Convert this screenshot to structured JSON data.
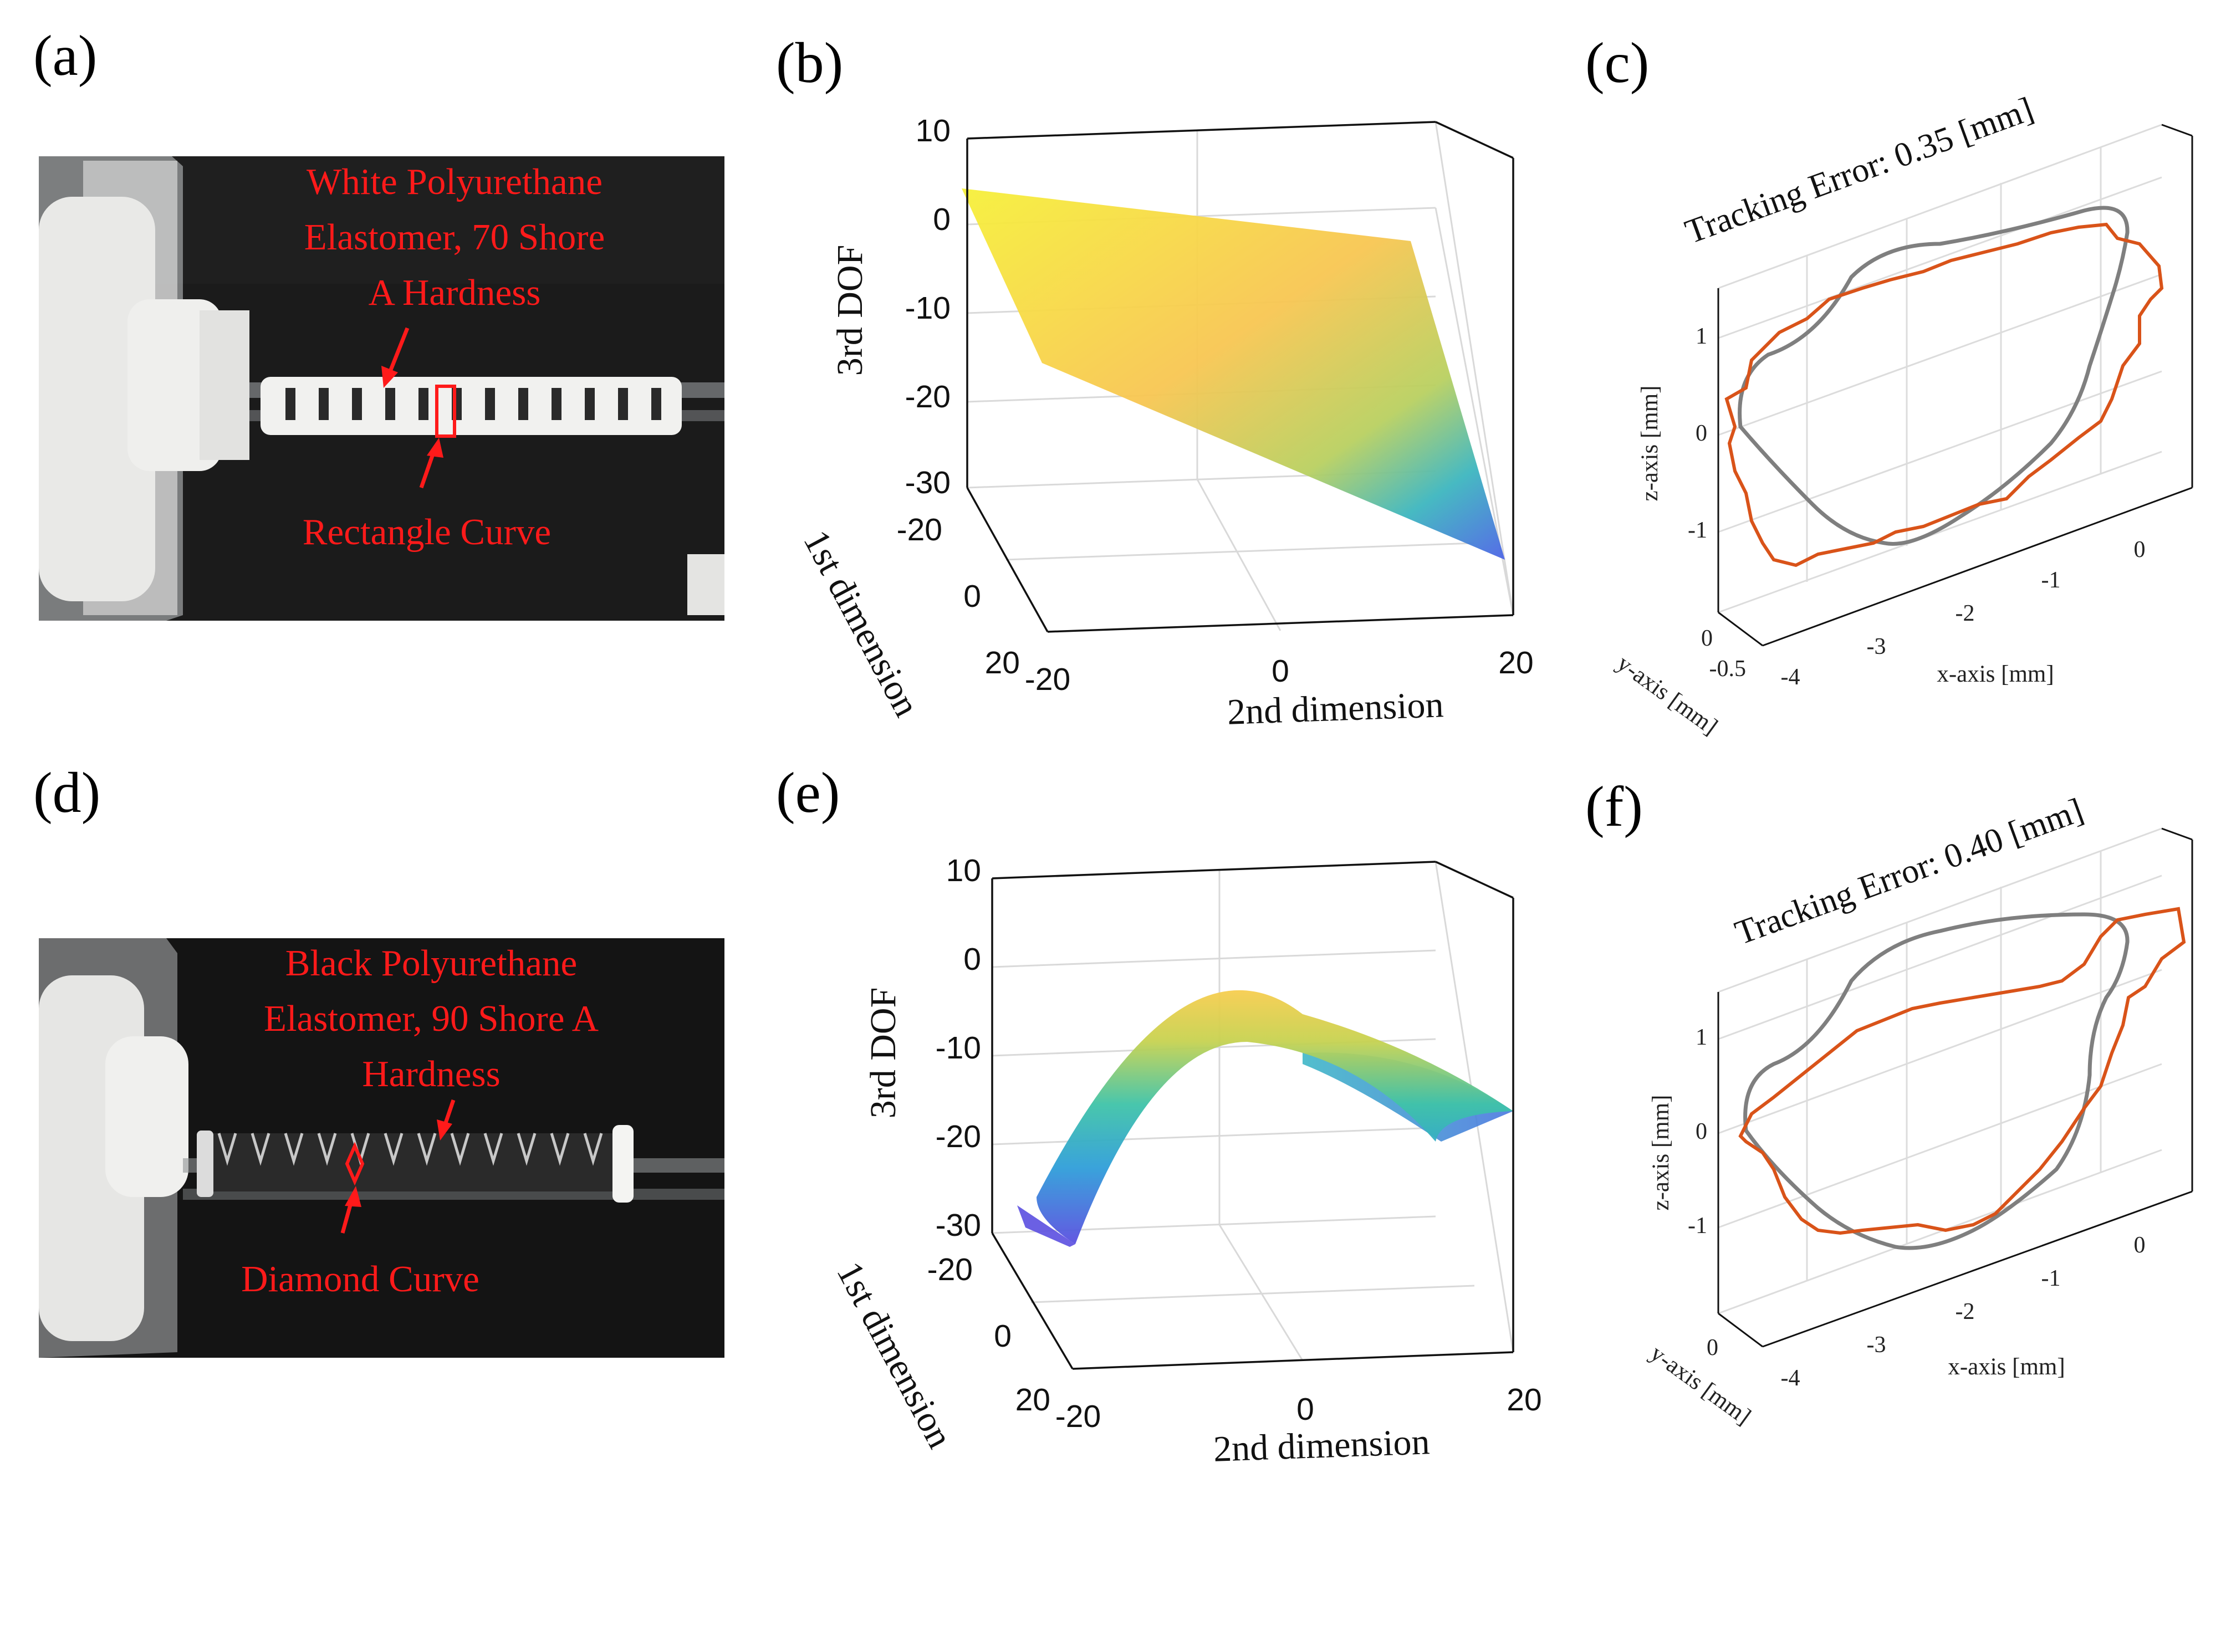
{
  "panel_labels": [
    "(a)",
    "(b)",
    "(c)",
    "(d)",
    "(e)",
    "(f)"
  ],
  "photo_a": {
    "annotation_material": [
      "White Polyurethane",
      "Elastomer, 70 Shore",
      "A Hardness"
    ],
    "annotation_curve": "Rectangle Curve",
    "colors": {
      "background": "#1b1b1b",
      "segment": "#f1f1ef",
      "annotation": "#ff1a1a"
    }
  },
  "photo_d": {
    "annotation_material": [
      "Black Polyurethane",
      "Elastomer, 90 Shore A",
      "Hardness"
    ],
    "annotation_curve": "Diamond Curve",
    "colors": {
      "background": "#141414",
      "segment": "#2a2a2a",
      "annotation": "#ff1a1a"
    }
  },
  "chart_data": [
    {
      "id": "b",
      "type": "surface",
      "xlabel": "2nd dimension",
      "ylabel": "1st dimension",
      "zlabel": "3rd DOF",
      "xticks": [
        "-20",
        "0",
        "20"
      ],
      "yticks": [
        "-20",
        "0",
        "20"
      ],
      "zticks": [
        "10",
        "0",
        "-10",
        "-20",
        "-30"
      ],
      "xlim": [
        -20,
        20
      ],
      "ylim": [
        -20,
        20
      ],
      "zlim": [
        -30,
        10
      ],
      "grid": true,
      "colormap": "parula",
      "surface_corners_z": {
        "x-20_y-20": 4,
        "x20_y-20": -2,
        "x-20_y20": -13,
        "x20_y20": -42
      }
    },
    {
      "id": "c",
      "type": "line",
      "title": "Tracking Error: 0.35 [mm]",
      "xlabel": "x-axis [mm]",
      "ylabel": "y-axis [mm]",
      "zlabel": "z-axis [mm]",
      "xticks": [
        "-4",
        "-3",
        "-2",
        "-1",
        "0"
      ],
      "yticks": [
        "0",
        "-0.5"
      ],
      "zticks": [
        "1",
        "0",
        "-1"
      ],
      "grid": true,
      "series_colors": {
        "reference": "#7f7f7f",
        "measured": "#d95319"
      }
    },
    {
      "id": "e",
      "type": "surface",
      "xlabel": "2nd dimension",
      "ylabel": "1st dimension",
      "zlabel": "3rd DOF",
      "xticks": [
        "-20",
        "0",
        "20"
      ],
      "yticks": [
        "-20",
        "0",
        "20"
      ],
      "zticks": [
        "10",
        "0",
        "-10",
        "-20",
        "-30"
      ],
      "xlim": [
        -20,
        20
      ],
      "ylim": [
        -20,
        20
      ],
      "zlim": [
        -30,
        10
      ],
      "grid": true,
      "colormap": "parula",
      "surface_peak_z": -4,
      "surface_edge_z": -28
    },
    {
      "id": "f",
      "type": "line",
      "title": "Tracking Error: 0.40 [mm]",
      "xlabel": "x-axis [mm]",
      "ylabel": "y-axis [mm]",
      "zlabel": "z-axis [mm]",
      "xticks": [
        "-4",
        "-3",
        "-2",
        "-1",
        "0"
      ],
      "yticks": [
        "0"
      ],
      "zticks": [
        "1",
        "0",
        "-1"
      ],
      "grid": true,
      "series_colors": {
        "reference": "#7f7f7f",
        "measured": "#d95319"
      }
    }
  ]
}
